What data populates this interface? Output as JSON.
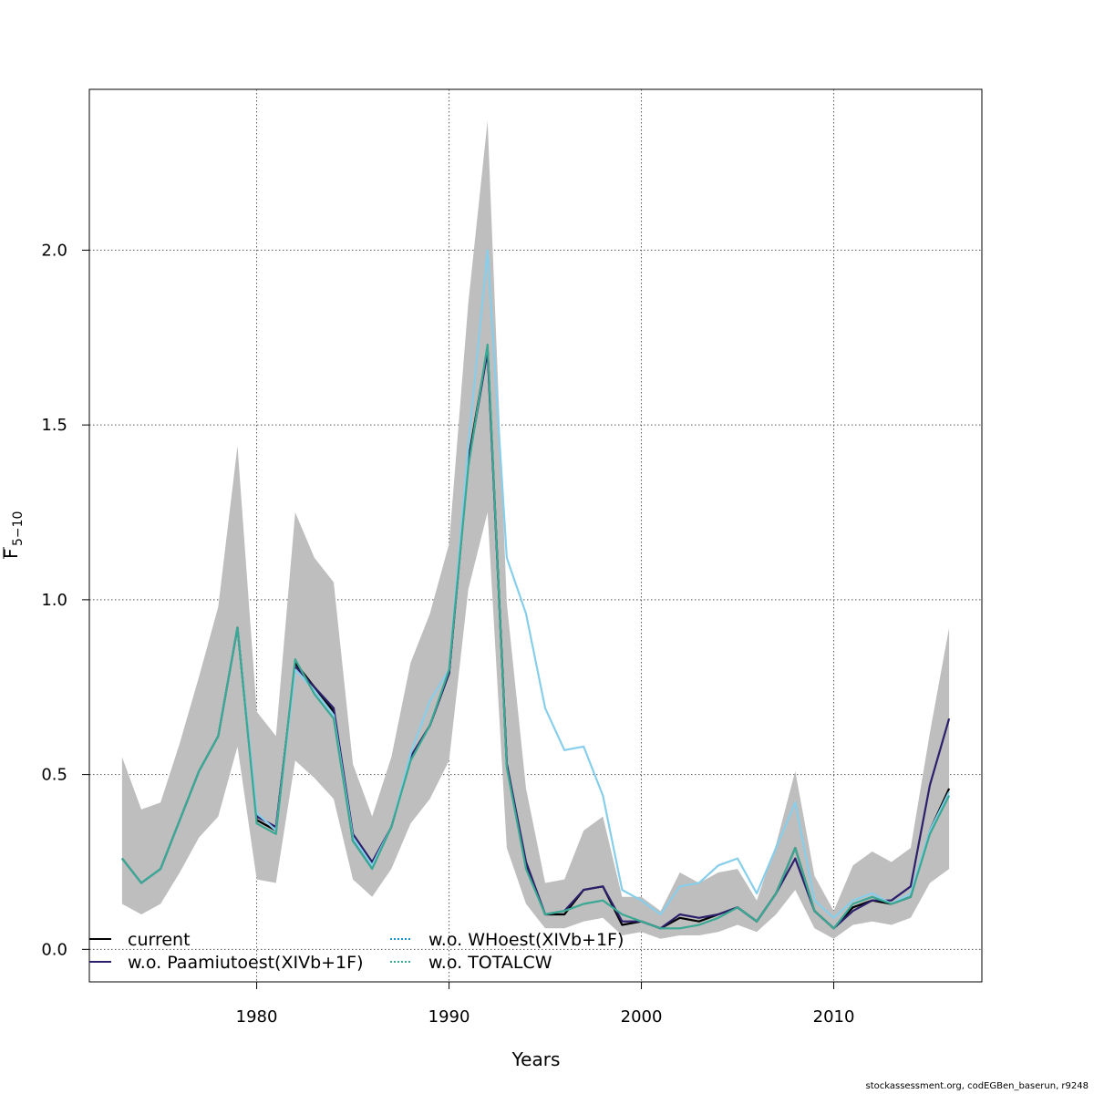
{
  "chart_data": {
    "type": "line",
    "xlabel": "Years",
    "ylabel_main": "F",
    "ylabel_sub": "5−10",
    "xlim": [
      1971.3,
      2017.7
    ],
    "ylim": [
      -0.093,
      2.46
    ],
    "xticks": [
      1980,
      1990,
      2000,
      2010
    ],
    "yticks": [
      0.0,
      0.5,
      1.0,
      1.5,
      2.0
    ],
    "ytick_labels": [
      "0.0",
      "0.5",
      "1.0",
      "1.5",
      "2.0"
    ],
    "grid": true,
    "legend_position": "bottom-left",
    "x": [
      1973,
      1974,
      1975,
      1976,
      1977,
      1978,
      1979,
      1980,
      1981,
      1982,
      1983,
      1984,
      1985,
      1986,
      1987,
      1988,
      1989,
      1990,
      1991,
      1992,
      1993,
      1994,
      1995,
      1996,
      1997,
      1998,
      1999,
      2000,
      2001,
      2002,
      2003,
      2004,
      2005,
      2006,
      2007,
      2008,
      2009,
      2010,
      2011,
      2012,
      2013,
      2014,
      2015,
      2016
    ],
    "confidence_band": {
      "color": "#BEBEBE",
      "lower": [
        0.13,
        0.1,
        0.13,
        0.22,
        0.32,
        0.38,
        0.58,
        0.2,
        0.19,
        0.54,
        0.49,
        0.43,
        0.2,
        0.15,
        0.23,
        0.36,
        0.43,
        0.54,
        1.03,
        1.25,
        0.29,
        0.13,
        0.06,
        0.06,
        0.08,
        0.09,
        0.04,
        0.05,
        0.03,
        0.04,
        0.04,
        0.05,
        0.07,
        0.05,
        0.1,
        0.17,
        0.06,
        0.03,
        0.07,
        0.08,
        0.07,
        0.09,
        0.19,
        0.23
      ],
      "upper": [
        0.55,
        0.4,
        0.42,
        0.59,
        0.78,
        0.98,
        1.44,
        0.68,
        0.61,
        1.25,
        1.12,
        1.05,
        0.53,
        0.38,
        0.55,
        0.82,
        0.96,
        1.16,
        1.85,
        2.37,
        0.99,
        0.46,
        0.19,
        0.2,
        0.34,
        0.38,
        0.15,
        0.15,
        0.11,
        0.22,
        0.19,
        0.22,
        0.23,
        0.14,
        0.3,
        0.51,
        0.21,
        0.11,
        0.24,
        0.28,
        0.25,
        0.29,
        0.62,
        0.92
      ]
    },
    "series": [
      {
        "name": "current",
        "color": "#000000",
        "dash": "",
        "width": 2.2,
        "values": [
          0.26,
          0.19,
          0.23,
          0.37,
          0.51,
          0.61,
          0.92,
          0.37,
          0.34,
          0.82,
          0.75,
          0.68,
          0.31,
          0.24,
          0.35,
          0.55,
          0.64,
          0.79,
          1.4,
          1.72,
          0.53,
          0.24,
          0.1,
          0.1,
          0.17,
          0.18,
          0.07,
          0.08,
          0.06,
          0.09,
          0.08,
          0.1,
          0.12,
          0.08,
          0.16,
          0.29,
          0.11,
          0.06,
          0.12,
          0.14,
          0.13,
          0.15,
          0.34,
          0.46
        ]
      },
      {
        "name": "w.o. Paamiutoest(XIVb+1F)",
        "color": "#2C1F6B",
        "dash": "",
        "width": 2.2,
        "values": [
          0.26,
          0.19,
          0.23,
          0.37,
          0.51,
          0.61,
          0.92,
          0.38,
          0.35,
          0.81,
          0.75,
          0.69,
          0.33,
          0.25,
          0.35,
          0.55,
          0.64,
          0.79,
          1.39,
          1.71,
          0.53,
          0.25,
          0.1,
          0.11,
          0.17,
          0.18,
          0.08,
          0.08,
          0.06,
          0.1,
          0.09,
          0.1,
          0.12,
          0.08,
          0.16,
          0.26,
          0.11,
          0.06,
          0.11,
          0.14,
          0.14,
          0.18,
          0.47,
          0.66
        ]
      },
      {
        "name": "w.o. WHoest(XIVb+1F)",
        "color": "#87CEEB",
        "dash": "",
        "width": 2.2,
        "values": [
          0.26,
          0.19,
          0.23,
          0.37,
          0.51,
          0.61,
          0.92,
          0.39,
          0.34,
          0.8,
          0.74,
          0.67,
          0.32,
          0.24,
          0.35,
          0.56,
          0.71,
          0.8,
          1.44,
          2.0,
          1.12,
          0.96,
          0.69,
          0.57,
          0.58,
          0.44,
          0.17,
          0.14,
          0.1,
          0.18,
          0.19,
          0.24,
          0.26,
          0.16,
          0.29,
          0.42,
          0.14,
          0.09,
          0.14,
          0.16,
          0.13,
          0.16,
          0.34,
          0.45
        ]
      },
      {
        "name": "w.o. TOTALCW",
        "color": "#3AA893",
        "dash": "",
        "width": 2.2,
        "values": [
          0.26,
          0.19,
          0.23,
          0.37,
          0.51,
          0.61,
          0.92,
          0.36,
          0.33,
          0.83,
          0.73,
          0.66,
          0.31,
          0.23,
          0.35,
          0.54,
          0.64,
          0.8,
          1.38,
          1.73,
          0.52,
          0.23,
          0.1,
          0.11,
          0.13,
          0.14,
          0.1,
          0.08,
          0.06,
          0.06,
          0.07,
          0.09,
          0.12,
          0.08,
          0.16,
          0.29,
          0.11,
          0.06,
          0.13,
          0.15,
          0.13,
          0.15,
          0.33,
          0.44
        ]
      }
    ],
    "legend": [
      {
        "label": "current",
        "color": "#000000",
        "dash": ""
      },
      {
        "label": "w.o. Paamiutoest(XIVb+1F)",
        "color": "#2C1F6B",
        "dash": ""
      },
      {
        "label": "w.o. WHoest(XIVb+1F)",
        "color": "#1E90C8",
        "dash": "2,2"
      },
      {
        "label": "w.o. TOTALCW",
        "color": "#3AA893",
        "dash": "2,2"
      }
    ]
  },
  "footnote": "stockassessment.org, codEGBen_baserun, r9248"
}
